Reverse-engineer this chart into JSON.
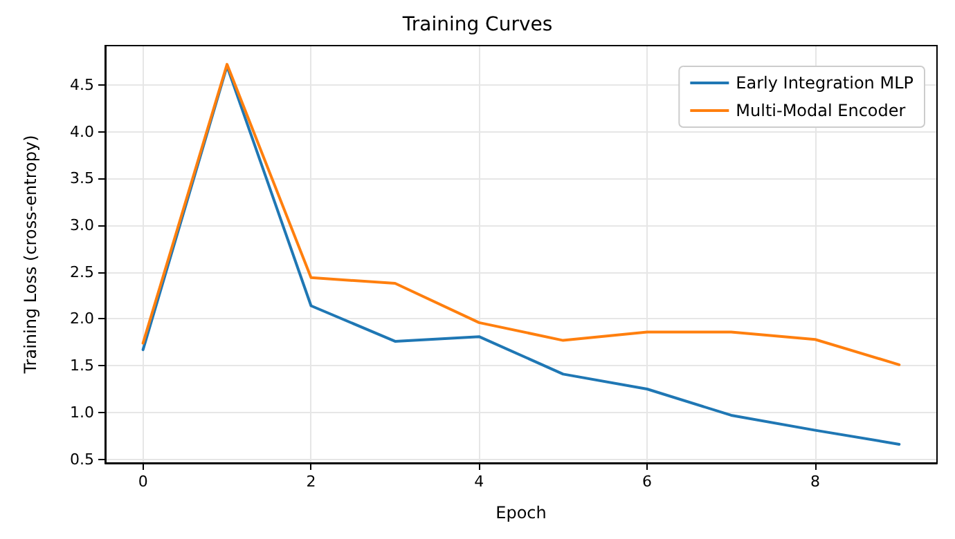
{
  "chart_data": {
    "type": "line",
    "title": "Training Curves",
    "xlabel": "Epoch",
    "ylabel": "Training Loss (cross-entropy)",
    "x": [
      0,
      1,
      2,
      3,
      4,
      5,
      6,
      7,
      8,
      9
    ],
    "series": [
      {
        "name": "Early Integration MLP",
        "color": "#1f77b4",
        "values": [
          1.67,
          4.7,
          2.14,
          1.76,
          1.81,
          1.41,
          1.25,
          0.97,
          0.81,
          0.66
        ]
      },
      {
        "name": "Multi-Modal Encoder",
        "color": "#ff7f0e",
        "values": [
          1.74,
          4.72,
          2.44,
          2.38,
          1.96,
          1.77,
          1.86,
          1.86,
          1.78,
          1.51
        ]
      }
    ],
    "xlim": [
      -0.45,
      9.45
    ],
    "xticks": [
      0,
      2,
      4,
      6,
      8
    ],
    "ylim": [
      0.46,
      4.92
    ],
    "yticks": [
      0.5,
      {
        "value": 1,
        "label": "1.0"
      },
      1.5,
      {
        "value": 2,
        "label": "2.0"
      },
      2.5,
      {
        "value": 3,
        "label": "3.0"
      },
      3.5,
      {
        "value": 4,
        "label": "4.0"
      },
      4.5
    ],
    "grid": true,
    "legend": "top right",
    "marker": "none",
    "line_style": "solid"
  }
}
